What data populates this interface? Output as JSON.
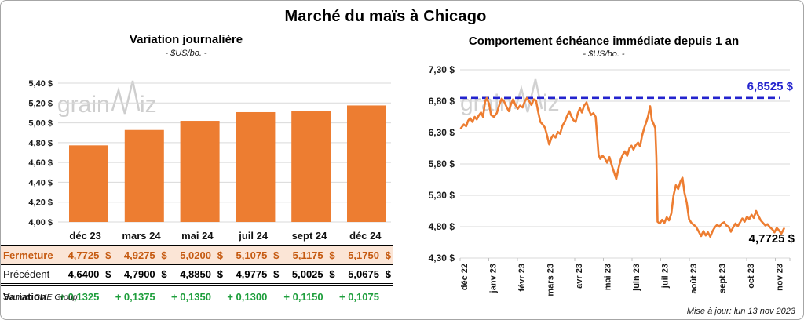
{
  "page": {
    "title": "Marché du maïs à Chicago"
  },
  "watermark": {
    "part1": "grain",
    "part2": "iz"
  },
  "left_panel": {
    "title": "Variation journalière",
    "subtitle": "- $US/bo. -",
    "source": "Source: CME Group",
    "table": {
      "columns": [
        "déc 23",
        "mars 24",
        "mai 24",
        "juil 24",
        "sept 24",
        "déc 24"
      ],
      "rows": [
        {
          "id": "fermeture",
          "label": "Fermeture",
          "currency": "$",
          "values": [
            "4,7725",
            "4,9275",
            "5,0200",
            "5,1075",
            "5,1175",
            "5,1750"
          ]
        },
        {
          "id": "precedent",
          "label": "Précédent",
          "currency": "$",
          "values": [
            "4,6400",
            "4,7900",
            "4,8850",
            "4,9775",
            "5,0025",
            "5,0675"
          ]
        },
        {
          "id": "variation",
          "label": "Variation",
          "currency": "",
          "values": [
            "+ 0,1325",
            "+ 0,1375",
            "+ 0,1350",
            "+ 0,1300",
            "+ 0,1150",
            "+ 0,1075"
          ]
        }
      ]
    }
  },
  "right_panel": {
    "title": "Comportement échéance immédiate depuis 1 an",
    "subtitle": "- $US/bo. -",
    "max_label": "6,8525 $",
    "last_label": "4,7725 $",
    "update_note": "Mise à jour: lun 13 nov 2023"
  },
  "chart_data": [
    {
      "type": "bar",
      "title": "Variation journalière",
      "ylabel": "$US/bo.",
      "categories": [
        "déc 23",
        "mars 24",
        "mai 24",
        "juil 24",
        "sept 24",
        "déc 24"
      ],
      "values": [
        4.7725,
        4.9275,
        5.02,
        5.1075,
        5.1175,
        5.175
      ],
      "ylim": [
        4.0,
        5.4
      ],
      "ytick_step": 0.2,
      "ytick_labels": [
        "5,40 $",
        "5,20 $",
        "5,00 $",
        "4,80 $",
        "4,60 $",
        "4,40 $",
        "4,20 $",
        "4,00 $"
      ],
      "grid": true,
      "bar_color": "#ED7D31"
    },
    {
      "type": "line",
      "title": "Comportement échéance immédiate depuis 1 an",
      "ylabel": "$US/bo.",
      "x_months": [
        "déc 22",
        "janv 23",
        "févr 23",
        "mars 23",
        "avr 23",
        "mai 23",
        "juin 23",
        "juil 23",
        "août 23",
        "sept 23",
        "oct 23",
        "nov 23"
      ],
      "ylim": [
        4.3,
        7.3
      ],
      "ytick_step": 0.5,
      "ytick_labels": [
        "7,30 $",
        "6,80 $",
        "6,30 $",
        "5,80 $",
        "5,30 $",
        "4,80 $",
        "4,30 $"
      ],
      "grid": true,
      "line_color": "#ED7D31",
      "max_value": 6.8525,
      "last_value": 4.7725,
      "dash_color": "#2323CE",
      "points": [
        [
          -0.1,
          6.37
        ],
        [
          0.0,
          6.43
        ],
        [
          0.08,
          6.4
        ],
        [
          0.15,
          6.49
        ],
        [
          0.22,
          6.53
        ],
        [
          0.3,
          6.47
        ],
        [
          0.38,
          6.55
        ],
        [
          0.45,
          6.51
        ],
        [
          0.52,
          6.57
        ],
        [
          0.6,
          6.62
        ],
        [
          0.67,
          6.55
        ],
        [
          0.74,
          6.79
        ],
        [
          0.8,
          6.85
        ],
        [
          0.88,
          6.76
        ],
        [
          0.95,
          6.58
        ],
        [
          1.05,
          6.55
        ],
        [
          1.15,
          6.61
        ],
        [
          1.25,
          6.76
        ],
        [
          1.32,
          6.84
        ],
        [
          1.4,
          6.8
        ],
        [
          1.5,
          6.7
        ],
        [
          1.57,
          6.64
        ],
        [
          1.65,
          6.76
        ],
        [
          1.72,
          6.83
        ],
        [
          1.8,
          6.74
        ],
        [
          1.88,
          6.68
        ],
        [
          1.96,
          6.73
        ],
        [
          2.05,
          6.7
        ],
        [
          2.12,
          6.79
        ],
        [
          2.2,
          6.85
        ],
        [
          2.28,
          6.8
        ],
        [
          2.36,
          6.74
        ],
        [
          2.44,
          6.83
        ],
        [
          2.52,
          6.81
        ],
        [
          2.6,
          6.62
        ],
        [
          2.67,
          6.47
        ],
        [
          2.75,
          6.43
        ],
        [
          2.83,
          6.38
        ],
        [
          2.9,
          6.26
        ],
        [
          2.98,
          6.11
        ],
        [
          3.05,
          6.21
        ],
        [
          3.12,
          6.26
        ],
        [
          3.2,
          6.22
        ],
        [
          3.28,
          6.31
        ],
        [
          3.36,
          6.28
        ],
        [
          3.44,
          6.41
        ],
        [
          3.52,
          6.47
        ],
        [
          3.6,
          6.56
        ],
        [
          3.68,
          6.64
        ],
        [
          3.74,
          6.57
        ],
        [
          3.82,
          6.5
        ],
        [
          3.9,
          6.47
        ],
        [
          3.98,
          6.61
        ],
        [
          4.05,
          6.69
        ],
        [
          4.12,
          6.62
        ],
        [
          4.2,
          6.73
        ],
        [
          4.28,
          6.78
        ],
        [
          4.36,
          6.66
        ],
        [
          4.44,
          6.58
        ],
        [
          4.52,
          6.61
        ],
        [
          4.6,
          6.55
        ],
        [
          4.66,
          6.2
        ],
        [
          4.7,
          5.95
        ],
        [
          4.76,
          5.88
        ],
        [
          4.84,
          5.93
        ],
        [
          4.92,
          5.89
        ],
        [
          5.0,
          5.82
        ],
        [
          5.08,
          5.91
        ],
        [
          5.16,
          5.78
        ],
        [
          5.24,
          5.67
        ],
        [
          5.32,
          5.56
        ],
        [
          5.4,
          5.73
        ],
        [
          5.48,
          5.88
        ],
        [
          5.55,
          5.95
        ],
        [
          5.62,
          6.0
        ],
        [
          5.7,
          5.93
        ],
        [
          5.78,
          6.05
        ],
        [
          5.85,
          6.09
        ],
        [
          5.92,
          6.03
        ],
        [
          6.0,
          6.1
        ],
        [
          6.08,
          6.14
        ],
        [
          6.15,
          6.08
        ],
        [
          6.22,
          6.25
        ],
        [
          6.3,
          6.38
        ],
        [
          6.36,
          6.46
        ],
        [
          6.43,
          6.56
        ],
        [
          6.5,
          6.72
        ],
        [
          6.56,
          6.5
        ],
        [
          6.62,
          6.44
        ],
        [
          6.68,
          6.37
        ],
        [
          6.72,
          5.9
        ],
        [
          6.76,
          4.88
        ],
        [
          6.84,
          4.85
        ],
        [
          6.92,
          4.91
        ],
        [
          7.0,
          4.86
        ],
        [
          7.08,
          4.95
        ],
        [
          7.16,
          4.9
        ],
        [
          7.24,
          5.01
        ],
        [
          7.32,
          5.3
        ],
        [
          7.4,
          5.46
        ],
        [
          7.48,
          5.4
        ],
        [
          7.56,
          5.52
        ],
        [
          7.63,
          5.58
        ],
        [
          7.7,
          5.34
        ],
        [
          7.78,
          5.18
        ],
        [
          7.86,
          4.92
        ],
        [
          7.94,
          4.86
        ],
        [
          8.02,
          4.83
        ],
        [
          8.1,
          4.8
        ],
        [
          8.2,
          4.72
        ],
        [
          8.28,
          4.65
        ],
        [
          8.36,
          4.73
        ],
        [
          8.44,
          4.66
        ],
        [
          8.52,
          4.71
        ],
        [
          8.6,
          4.64
        ],
        [
          8.68,
          4.73
        ],
        [
          8.76,
          4.79
        ],
        [
          8.84,
          4.83
        ],
        [
          8.92,
          4.8
        ],
        [
          9.0,
          4.85
        ],
        [
          9.08,
          4.87
        ],
        [
          9.16,
          4.82
        ],
        [
          9.24,
          4.8
        ],
        [
          9.32,
          4.72
        ],
        [
          9.4,
          4.79
        ],
        [
          9.48,
          4.85
        ],
        [
          9.56,
          4.81
        ],
        [
          9.64,
          4.87
        ],
        [
          9.72,
          4.93
        ],
        [
          9.8,
          4.88
        ],
        [
          9.88,
          4.96
        ],
        [
          9.96,
          4.92
        ],
        [
          10.04,
          4.99
        ],
        [
          10.12,
          4.94
        ],
        [
          10.2,
          5.05
        ],
        [
          10.28,
          4.97
        ],
        [
          10.36,
          4.9
        ],
        [
          10.44,
          4.86
        ],
        [
          10.52,
          4.82
        ],
        [
          10.6,
          4.84
        ],
        [
          10.68,
          4.79
        ],
        [
          10.76,
          4.76
        ],
        [
          10.84,
          4.71
        ],
        [
          10.92,
          4.78
        ],
        [
          11.0,
          4.74
        ],
        [
          11.08,
          4.69
        ],
        [
          11.17,
          4.77
        ]
      ]
    }
  ]
}
